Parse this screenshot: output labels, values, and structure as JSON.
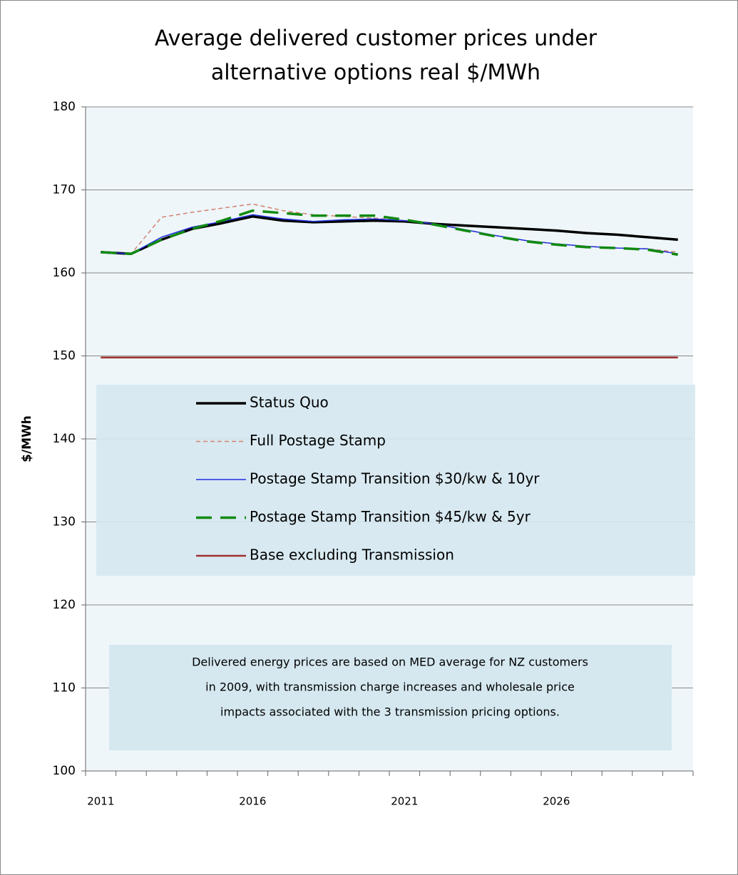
{
  "chart_data": {
    "type": "line",
    "title": [
      "Average delivered customer prices under",
      "alternative options  real $/MWh"
    ],
    "y_label": "$/MWh",
    "categories": [
      "2011",
      null,
      null,
      null,
      null,
      "2016",
      null,
      null,
      null,
      null,
      "2021",
      null,
      null,
      null,
      null,
      "2026",
      null,
      null,
      null,
      null
    ],
    "ylim": [
      100,
      180
    ],
    "yticks": [
      100,
      110,
      120,
      130,
      140,
      150,
      160,
      170,
      180
    ],
    "grid": true,
    "series": [
      {
        "name": "Status Quo",
        "color": "#000000",
        "line_style": "solid",
        "line_weight": "thick",
        "values": [
          162.5,
          162.3,
          164,
          165.3,
          166,
          166.8,
          166.3,
          166.1,
          166.2,
          166.3,
          166.2,
          165.9,
          165.7,
          165.5,
          165.3,
          165.1,
          164.8,
          164.6,
          164.3,
          164
        ]
      },
      {
        "name": "Full Postage Stamp",
        "color": "#d4826e",
        "line_style": "dashed",
        "line_weight": "thin",
        "values": [
          162.5,
          162.3,
          166.7,
          167.3,
          167.8,
          168.3,
          167.5,
          167,
          166.8,
          166.6,
          166.3,
          165.9,
          165.2,
          164.5,
          163.9,
          163.5,
          163.2,
          163,
          162.9,
          162.5
        ]
      },
      {
        "name": "Postage Stamp Transition $30/kw & 10yr",
        "color": "#1f2ee0",
        "line_style": "solid",
        "line_weight": "thin",
        "values": [
          162.5,
          162.3,
          164.3,
          165.5,
          166.2,
          167,
          166.5,
          166.2,
          166.4,
          166.5,
          166.3,
          165.9,
          165.2,
          164.5,
          163.9,
          163.5,
          163.2,
          163,
          162.9,
          162.3
        ]
      },
      {
        "name": "Postage Stamp Transition $45/kw & 5yr",
        "color": "#118a11",
        "line_style": "long-dashed",
        "line_weight": "thick",
        "values": [
          162.5,
          162.3,
          164,
          165.3,
          166.3,
          167.5,
          167.2,
          166.9,
          166.9,
          166.9,
          166.4,
          165.8,
          165.1,
          164.4,
          163.8,
          163.4,
          163.1,
          163,
          162.8,
          162.2
        ]
      },
      {
        "name": "Base excluding Transmission",
        "color": "#a03030",
        "line_style": "solid",
        "line_weight": "medium",
        "values": [
          149.8,
          149.8,
          149.8,
          149.8,
          149.8,
          149.8,
          149.8,
          149.8,
          149.8,
          149.8,
          149.8,
          149.8,
          149.8,
          149.8,
          149.8,
          149.8,
          149.8,
          149.8,
          149.8,
          149.8
        ]
      }
    ],
    "note": [
      "Delivered energy prices are based on MED average for NZ customers",
      "in 2009, with  transmission  charge increases and wholesale  price",
      "impacts associated with  the 3 transmission  pricing options."
    ]
  }
}
